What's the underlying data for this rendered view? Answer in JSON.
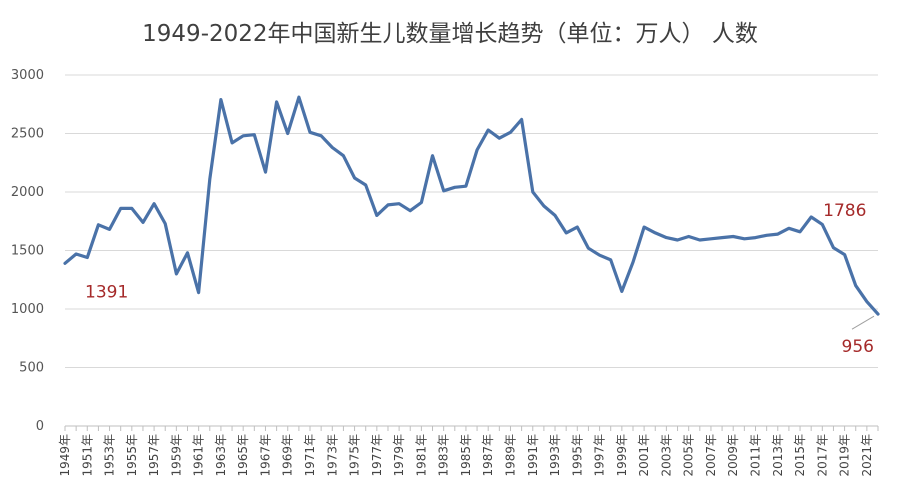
{
  "chart_data": {
    "type": "line",
    "title": "1949-2022年中国新生儿数量增长趋势（单位：万人） 人数",
    "xlabel": "",
    "ylabel": "",
    "ylim": [
      0,
      3000
    ],
    "yticks": [
      "0",
      "500",
      "1000",
      "1500",
      "2000",
      "2500",
      "3000"
    ],
    "grid": true,
    "legend": "none",
    "line_color": "#4a72a8",
    "annotation_color": "#a52a2a",
    "x": [
      "1949年",
      "1950年",
      "1951年",
      "1952年",
      "1953年",
      "1954年",
      "1955年",
      "1956年",
      "1957年",
      "1958年",
      "1959年",
      "1960年",
      "1961年",
      "1962年",
      "1963年",
      "1964年",
      "1965年",
      "1966年",
      "1967年",
      "1968年",
      "1969年",
      "1970年",
      "1971年",
      "1972年",
      "1973年",
      "1974年",
      "1975年",
      "1976年",
      "1977年",
      "1978年",
      "1979年",
      "1980年",
      "1981年",
      "1982年",
      "1983年",
      "1984年",
      "1985年",
      "1986年",
      "1987年",
      "1988年",
      "1989年",
      "1990年",
      "1991年",
      "1992年",
      "1993年",
      "1994年",
      "1995年",
      "1996年",
      "1997年",
      "1998年",
      "1999年",
      "2000年",
      "2001年",
      "2002年",
      "2003年",
      "2004年",
      "2005年",
      "2006年",
      "2007年",
      "2008年",
      "2009年",
      "2010年",
      "2011年",
      "2012年",
      "2013年",
      "2014年",
      "2015年",
      "2016年",
      "2017年",
      "2018年",
      "2019年",
      "2020年",
      "2021年",
      "2022年"
    ],
    "x_tick_labels": [
      "1949年",
      "1951年",
      "1953年",
      "1955年",
      "1957年",
      "1959年",
      "1961年",
      "1963年",
      "1965年",
      "1967年",
      "1969年",
      "1971年",
      "1973年",
      "1975年",
      "1977年",
      "1979年",
      "1981年",
      "1983年",
      "1985年",
      "1987年",
      "1989年",
      "1991年",
      "1993年",
      "1995年",
      "1997年",
      "1999年",
      "2001年",
      "2003年",
      "2005年",
      "2007年",
      "2009年",
      "2011年",
      "2013年",
      "2015年",
      "2017年",
      "2019年",
      "2021年"
    ],
    "series": [
      {
        "values": [
          1391,
          1470,
          1440,
          1720,
          1680,
          1860,
          1860,
          1740,
          1900,
          1730,
          1300,
          1480,
          1140,
          2110,
          2790,
          2420,
          2480,
          2490,
          2170,
          2770,
          2500,
          2810,
          2510,
          2480,
          2380,
          2310,
          2120,
          2060,
          1800,
          1890,
          1900,
          1840,
          1910,
          2310,
          2010,
          2040,
          2050,
          2360,
          2530,
          2460,
          2510,
          2620,
          2000,
          1880,
          1800,
          1650,
          1700,
          1520,
          1460,
          1420,
          1150,
          1400,
          1700,
          1650,
          1610,
          1590,
          1620,
          1590,
          1600,
          1610,
          1620,
          1600,
          1610,
          1630,
          1640,
          1690,
          1660,
          1786,
          1723,
          1523,
          1465,
          1200,
          1062,
          956
        ]
      }
    ],
    "annotations": [
      {
        "x": "1949年",
        "label": "1391"
      },
      {
        "x": "2016年",
        "label": "1786"
      },
      {
        "x": "2022年",
        "label": "956"
      }
    ]
  }
}
